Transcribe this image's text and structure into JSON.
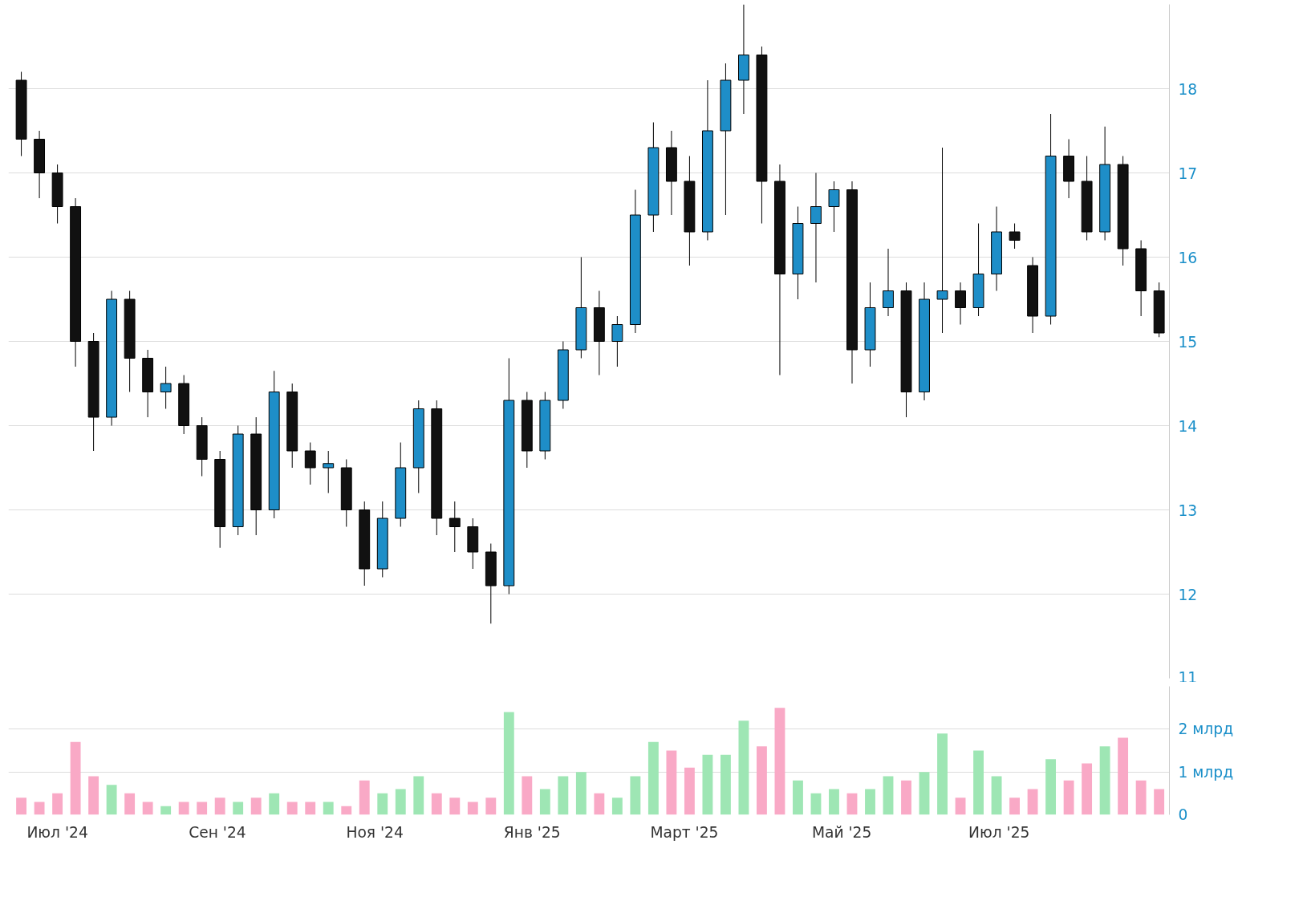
{
  "chart_data": [
    {
      "type": "candlestick",
      "colors": [
        "#111111",
        "#111111",
        "#111111",
        "#111111",
        "#111111",
        "#1e8ec8",
        "#111111",
        "#111111",
        "#1e8ec8",
        "#111111",
        "#111111",
        "#111111",
        "#1e8ec8",
        "#111111",
        "#1e8ec8",
        "#111111",
        "#111111",
        "#1e8ec8",
        "#111111",
        "#111111",
        "#1e8ec8",
        "#1e8ec8",
        "#1e8ec8",
        "#111111",
        "#111111",
        "#111111",
        "#111111",
        "#1e8ec8",
        "#111111",
        "#1e8ec8",
        "#1e8ec8",
        "#1e8ec8",
        "#111111",
        "#1e8ec8",
        "#1e8ec8",
        "#1e8ec8",
        "#111111",
        "#111111",
        "#1e8ec8",
        "#1e8ec8",
        "#1e8ec8",
        "#111111",
        "#111111",
        "#1e8ec8",
        "#1e8ec8",
        "#1e8ec8",
        "#111111",
        "#1e8ec8",
        "#1e8ec8",
        "#111111",
        "#1e8ec8",
        "#1e8ec8",
        "#111111",
        "#1e8ec8",
        "#1e8ec8",
        "#111111",
        "#111111",
        "#1e8ec8",
        "#111111",
        "#111111",
        "#1e8ec8",
        "#111111",
        "#111111",
        "#111111"
      ],
      "grid": "y",
      "tick_labels": "y",
      "xlim": [
        "2024-06-12",
        "2025-09-05"
      ],
      "ylim": [
        11,
        19
      ],
      "yticks": [
        11,
        12,
        13,
        14,
        15,
        16,
        17,
        18
      ],
      "x": [
        "2024-06-17",
        "2024-06-24",
        "2024-07-01",
        "2024-07-08",
        "2024-07-15",
        "2024-07-22",
        "2024-07-29",
        "2024-08-05",
        "2024-08-12",
        "2024-08-19",
        "2024-08-26",
        "2024-09-02",
        "2024-09-09",
        "2024-09-16",
        "2024-09-23",
        "2024-09-30",
        "2024-10-07",
        "2024-10-14",
        "2024-10-21",
        "2024-10-28",
        "2024-11-04",
        "2024-11-11",
        "2024-11-18",
        "2024-11-25",
        "2024-12-02",
        "2024-12-09",
        "2024-12-16",
        "2024-12-23",
        "2024-12-30",
        "2025-01-06",
        "2025-01-13",
        "2025-01-20",
        "2025-01-27",
        "2025-02-03",
        "2025-02-10",
        "2025-02-17",
        "2025-02-24",
        "2025-03-03",
        "2025-03-10",
        "2025-03-17",
        "2025-03-24",
        "2025-03-31",
        "2025-04-07",
        "2025-04-14",
        "2025-04-21",
        "2025-04-28",
        "2025-05-05",
        "2025-05-12",
        "2025-05-19",
        "2025-05-26",
        "2025-06-02",
        "2025-06-09",
        "2025-06-16",
        "2025-06-23",
        "2025-06-30",
        "2025-07-07",
        "2025-07-14",
        "2025-07-21",
        "2025-07-28",
        "2025-08-04",
        "2025-08-11",
        "2025-08-18",
        "2025-08-25",
        "2025-09-01"
      ],
      "ohlc": [
        [
          18.1,
          18.2,
          17.2,
          17.4
        ],
        [
          17.4,
          17.5,
          16.7,
          17.0
        ],
        [
          17.0,
          17.1,
          16.4,
          16.6
        ],
        [
          16.6,
          16.7,
          14.7,
          15.0
        ],
        [
          15.0,
          15.1,
          13.7,
          14.1
        ],
        [
          14.1,
          15.6,
          14.0,
          15.5
        ],
        [
          15.5,
          15.6,
          14.4,
          14.8
        ],
        [
          14.8,
          14.9,
          14.1,
          14.4
        ],
        [
          14.4,
          14.7,
          14.2,
          14.5
        ],
        [
          14.5,
          14.6,
          13.9,
          14.0
        ],
        [
          14.0,
          14.1,
          13.4,
          13.6
        ],
        [
          13.6,
          13.7,
          12.55,
          12.8
        ],
        [
          12.8,
          14.0,
          12.7,
          13.9
        ],
        [
          13.9,
          14.1,
          12.7,
          13.0
        ],
        [
          13.0,
          14.65,
          12.9,
          14.4
        ],
        [
          14.4,
          14.5,
          13.5,
          13.7
        ],
        [
          13.7,
          13.8,
          13.3,
          13.5
        ],
        [
          13.5,
          13.7,
          13.2,
          13.55
        ],
        [
          13.5,
          13.6,
          12.8,
          13.0
        ],
        [
          13.0,
          13.1,
          12.1,
          12.3
        ],
        [
          12.3,
          13.1,
          12.2,
          12.9
        ],
        [
          12.9,
          13.8,
          12.8,
          13.5
        ],
        [
          13.5,
          14.3,
          13.2,
          14.2
        ],
        [
          14.2,
          14.3,
          12.7,
          12.9
        ],
        [
          12.9,
          13.1,
          12.5,
          12.8
        ],
        [
          12.8,
          12.9,
          12.3,
          12.5
        ],
        [
          12.5,
          12.6,
          11.65,
          12.1
        ],
        [
          12.1,
          14.8,
          12.0,
          14.3
        ],
        [
          14.3,
          14.4,
          13.5,
          13.7
        ],
        [
          13.7,
          14.4,
          13.6,
          14.3
        ],
        [
          14.3,
          15.0,
          14.2,
          14.9
        ],
        [
          14.9,
          16.0,
          14.8,
          15.4
        ],
        [
          15.4,
          15.6,
          14.6,
          15.0
        ],
        [
          15.0,
          15.3,
          14.7,
          15.2
        ],
        [
          15.2,
          16.8,
          15.1,
          16.5
        ],
        [
          16.5,
          17.6,
          16.3,
          17.3
        ],
        [
          17.3,
          17.5,
          16.5,
          16.9
        ],
        [
          16.9,
          17.2,
          15.9,
          16.3
        ],
        [
          16.3,
          18.1,
          16.2,
          17.5
        ],
        [
          17.5,
          18.3,
          16.5,
          18.1
        ],
        [
          18.1,
          19.0,
          17.7,
          18.4
        ],
        [
          18.4,
          18.5,
          16.4,
          16.9
        ],
        [
          16.9,
          17.1,
          14.6,
          15.8
        ],
        [
          15.8,
          16.6,
          15.5,
          16.4
        ],
        [
          16.4,
          17.0,
          15.7,
          16.6
        ],
        [
          16.6,
          16.9,
          16.3,
          16.8
        ],
        [
          16.8,
          16.9,
          14.5,
          14.9
        ],
        [
          14.9,
          15.7,
          14.7,
          15.4
        ],
        [
          15.4,
          16.1,
          15.3,
          15.6
        ],
        [
          15.6,
          15.7,
          14.1,
          14.4
        ],
        [
          14.4,
          15.7,
          14.3,
          15.5
        ],
        [
          15.5,
          17.3,
          15.1,
          15.6
        ],
        [
          15.6,
          15.7,
          15.2,
          15.4
        ],
        [
          15.4,
          16.4,
          15.3,
          15.8
        ],
        [
          15.8,
          16.6,
          15.6,
          16.3
        ],
        [
          16.3,
          16.4,
          16.1,
          16.2
        ],
        [
          15.9,
          16.0,
          15.1,
          15.3
        ],
        [
          15.3,
          17.7,
          15.2,
          17.2
        ],
        [
          17.2,
          17.4,
          16.7,
          16.9
        ],
        [
          16.9,
          17.2,
          16.2,
          16.3
        ],
        [
          16.3,
          17.55,
          16.2,
          17.1
        ],
        [
          17.1,
          17.2,
          15.9,
          16.1
        ],
        [
          16.1,
          16.2,
          15.3,
          15.6
        ],
        [
          15.6,
          15.7,
          15.05,
          15.1
        ]
      ]
    },
    {
      "type": "bar",
      "grid": "y",
      "xlim": [
        "2024-06-12",
        "2025-09-05"
      ],
      "ylim": [
        0,
        3
      ],
      "yticks": [
        0,
        {
          "value": 1,
          "label": "1 млрд"
        },
        {
          "value": 2,
          "label": "2 млрд"
        }
      ],
      "xticks": [
        {
          "value": "2024-07-01",
          "label": "Июл '24"
        },
        {
          "value": "2024-09-01",
          "label": "Сен '24"
        },
        {
          "value": "2024-11-01",
          "label": "Ноя '24"
        },
        {
          "value": "2025-01-01",
          "label": "Янв '25"
        },
        {
          "value": "2025-03-01",
          "label": "Март '25"
        },
        {
          "value": "2025-05-01",
          "label": "Май '25"
        },
        {
          "value": "2025-07-01",
          "label": "Июл '25"
        }
      ],
      "x": [
        "2024-06-17",
        "2024-06-24",
        "2024-07-01",
        "2024-07-08",
        "2024-07-15",
        "2024-07-22",
        "2024-07-29",
        "2024-08-05",
        "2024-08-12",
        "2024-08-19",
        "2024-08-26",
        "2024-09-02",
        "2024-09-09",
        "2024-09-16",
        "2024-09-23",
        "2024-09-30",
        "2024-10-07",
        "2024-10-14",
        "2024-10-21",
        "2024-10-28",
        "2024-11-04",
        "2024-11-11",
        "2024-11-18",
        "2024-11-25",
        "2024-12-02",
        "2024-12-09",
        "2024-12-16",
        "2024-12-23",
        "2024-12-30",
        "2025-01-06",
        "2025-01-13",
        "2025-01-20",
        "2025-01-27",
        "2025-02-03",
        "2025-02-10",
        "2025-02-17",
        "2025-02-24",
        "2025-03-03",
        "2025-03-10",
        "2025-03-17",
        "2025-03-24",
        "2025-03-31",
        "2025-04-07",
        "2025-04-14",
        "2025-04-21",
        "2025-04-28",
        "2025-05-05",
        "2025-05-12",
        "2025-05-19",
        "2025-05-26",
        "2025-06-02",
        "2025-06-09",
        "2025-06-16",
        "2025-06-23",
        "2025-06-30",
        "2025-07-07",
        "2025-07-14",
        "2025-07-21",
        "2025-07-28",
        "2025-08-04",
        "2025-08-11",
        "2025-08-18",
        "2025-08-25",
        "2025-09-01"
      ],
      "values": [
        0.4,
        0.3,
        0.5,
        1.7,
        0.9,
        0.7,
        0.5,
        0.3,
        0.2,
        0.3,
        0.3,
        0.4,
        0.3,
        0.4,
        0.5,
        0.3,
        0.3,
        0.3,
        0.2,
        0.8,
        0.5,
        0.6,
        0.9,
        0.5,
        0.4,
        0.3,
        0.4,
        2.4,
        0.9,
        0.6,
        0.9,
        1.0,
        0.5,
        0.4,
        0.9,
        1.7,
        1.5,
        1.1,
        1.4,
        1.4,
        2.2,
        1.6,
        2.5,
        0.8,
        0.5,
        0.6,
        0.5,
        0.6,
        0.9,
        0.8,
        1.0,
        1.9,
        0.4,
        1.5,
        0.9,
        0.4,
        0.6,
        1.3,
        0.8,
        1.2,
        1.6,
        1.8,
        0.8,
        0.6
      ],
      "colors": [
        "#f9a9c6",
        "#f9a9c6",
        "#f9a9c6",
        "#f9a9c6",
        "#f9a9c6",
        "#9ee6b4",
        "#f9a9c6",
        "#f9a9c6",
        "#9ee6b4",
        "#f9a9c6",
        "#f9a9c6",
        "#f9a9c6",
        "#9ee6b4",
        "#f9a9c6",
        "#9ee6b4",
        "#f9a9c6",
        "#f9a9c6",
        "#9ee6b4",
        "#f9a9c6",
        "#f9a9c6",
        "#9ee6b4",
        "#9ee6b4",
        "#9ee6b4",
        "#f9a9c6",
        "#f9a9c6",
        "#f9a9c6",
        "#f9a9c6",
        "#9ee6b4",
        "#f9a9c6",
        "#9ee6b4",
        "#9ee6b4",
        "#9ee6b4",
        "#f9a9c6",
        "#9ee6b4",
        "#9ee6b4",
        "#9ee6b4",
        "#f9a9c6",
        "#f9a9c6",
        "#9ee6b4",
        "#9ee6b4",
        "#9ee6b4",
        "#f9a9c6",
        "#f9a9c6",
        "#9ee6b4",
        "#9ee6b4",
        "#9ee6b4",
        "#f9a9c6",
        "#9ee6b4",
        "#9ee6b4",
        "#f9a9c6",
        "#9ee6b4",
        "#9ee6b4",
        "#f9a9c6",
        "#9ee6b4",
        "#9ee6b4",
        "#f9a9c6",
        "#f9a9c6",
        "#9ee6b4",
        "#f9a9c6",
        "#f9a9c6",
        "#9ee6b4",
        "#f9a9c6",
        "#f9a9c6",
        "#f9a9c6"
      ]
    }
  ]
}
